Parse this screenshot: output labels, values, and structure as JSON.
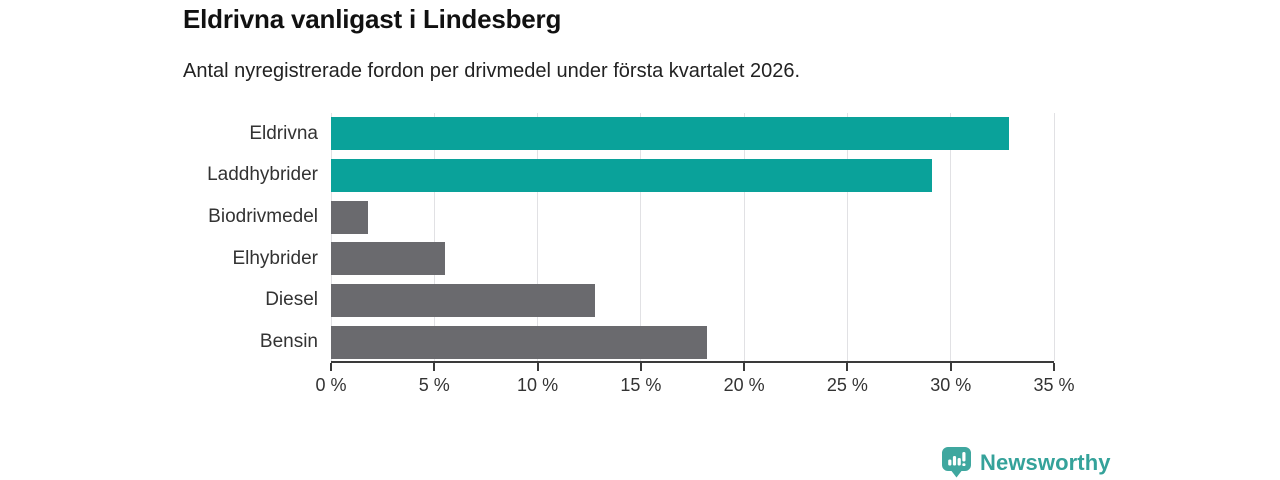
{
  "header": {
    "title": "Eldrivna vanligast i Lindesberg",
    "subtitle": "Antal nyregistrerade fordon per drivmedel under första kvartalet 2026."
  },
  "chart_data": {
    "type": "bar",
    "orientation": "horizontal",
    "title": "Eldrivna vanligast i Lindesberg",
    "subtitle": "Antal nyregistrerade fordon per drivmedel under första kvartalet 2026.",
    "categories": [
      "Eldrivna",
      "Laddhybrider",
      "Biodrivmedel",
      "Elhybrider",
      "Diesel",
      "Bensin"
    ],
    "values": [
      32.8,
      29.1,
      1.8,
      5.5,
      12.8,
      18.2
    ],
    "bar_colors": [
      "#0aa29a",
      "#0aa29a",
      "#6a6a6e",
      "#6a6a6e",
      "#6a6a6e",
      "#6a6a6e"
    ],
    "xlabel": "",
    "ylabel": "",
    "xlim": [
      0,
      35
    ],
    "xticks": [
      0,
      5,
      10,
      15,
      20,
      25,
      30,
      35
    ],
    "xtick_labels": [
      "0 %",
      "5 %",
      "10 %",
      "15 %",
      "20 %",
      "25 %",
      "30 %",
      "35 %"
    ],
    "grid": true,
    "legend": false
  },
  "footer": {
    "brand": "Newsworthy"
  },
  "colors": {
    "accent_teal": "#0aa29a",
    "bar_gray": "#6a6a6e",
    "gridline": "#e1e1e4",
    "axis": "#3a3a3a",
    "brand_teal": "#35a29a",
    "badge_teal": "#3fa79f"
  }
}
